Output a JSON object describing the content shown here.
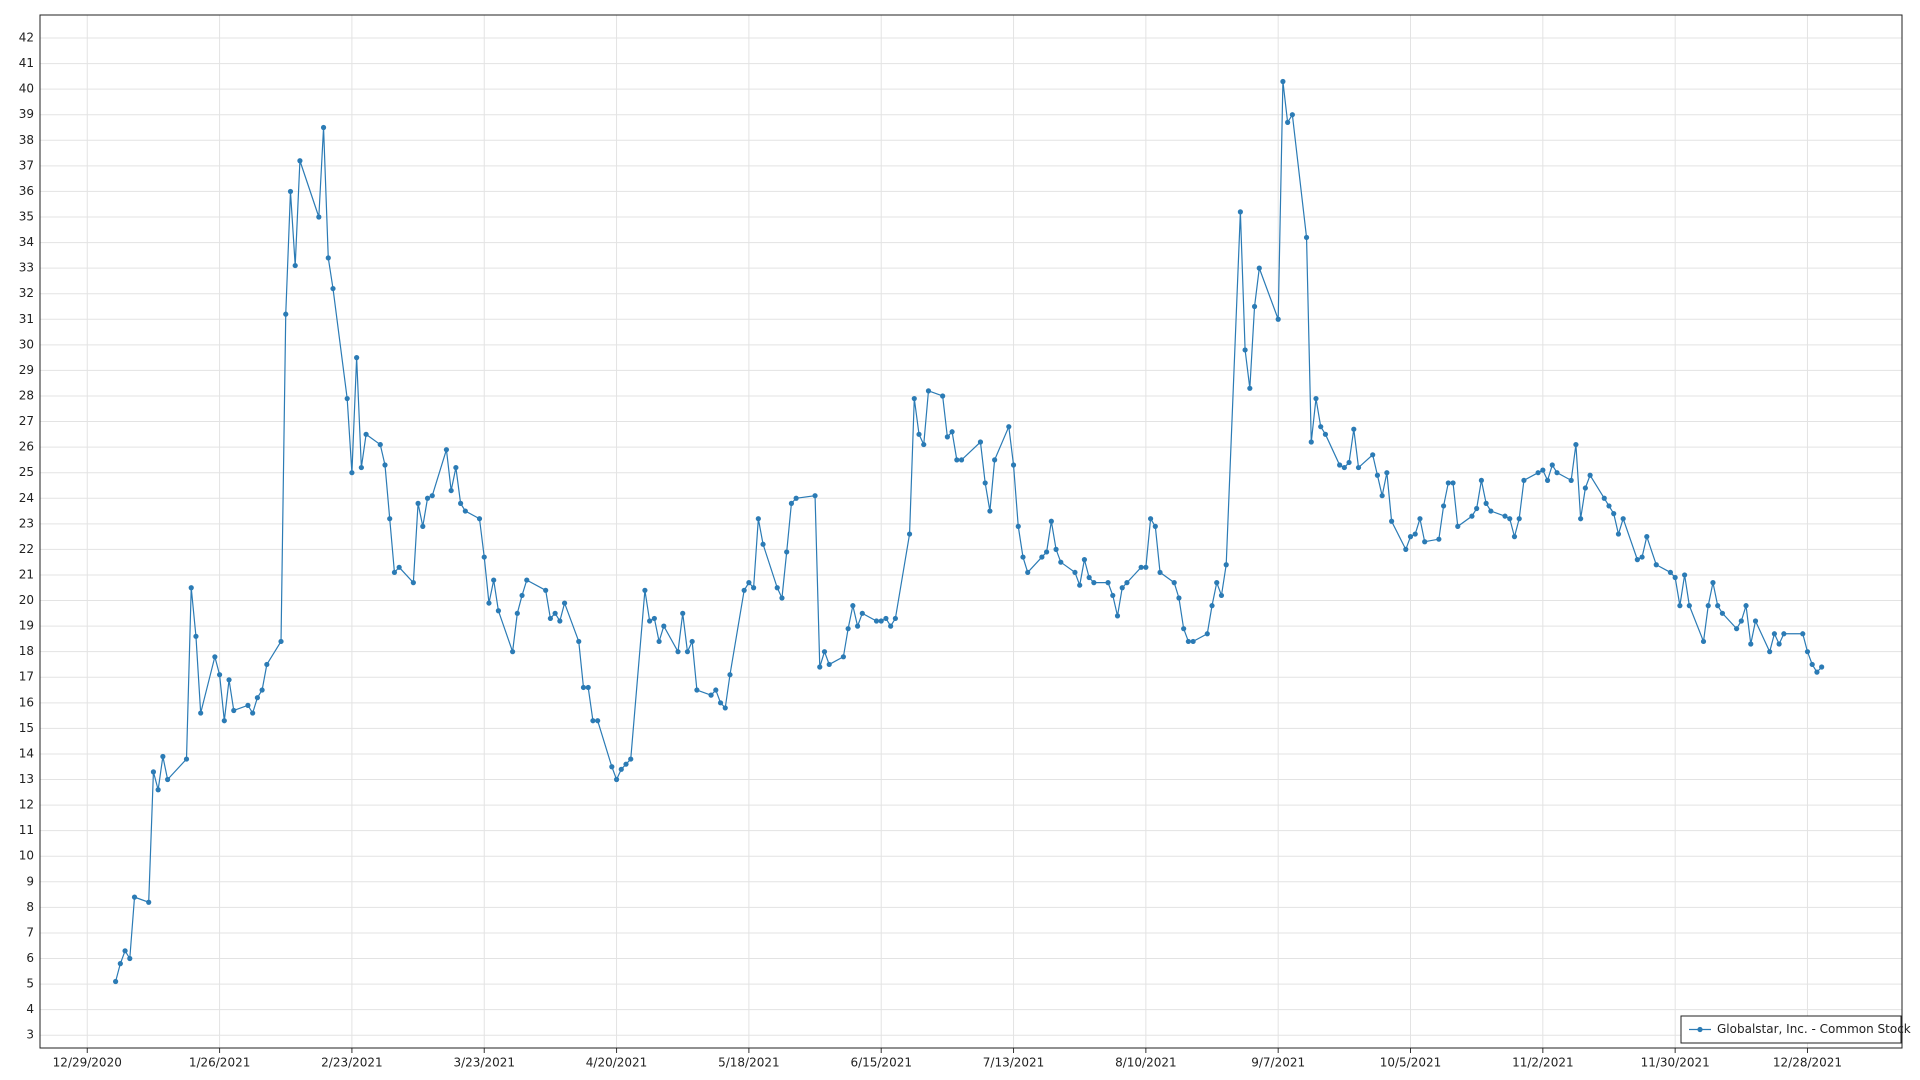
{
  "chart_data": {
    "type": "line",
    "x": [
      "1/4/2021",
      "1/5/2021",
      "1/6/2021",
      "1/7/2021",
      "1/8/2021",
      "1/11/2021",
      "1/12/2021",
      "1/13/2021",
      "1/14/2021",
      "1/15/2021",
      "1/19/2021",
      "1/20/2021",
      "1/21/2021",
      "1/22/2021",
      "1/25/2021",
      "1/26/2021",
      "1/27/2021",
      "1/28/2021",
      "1/29/2021",
      "2/1/2021",
      "2/2/2021",
      "2/3/2021",
      "2/4/2021",
      "2/5/2021",
      "2/8/2021",
      "2/9/2021",
      "2/10/2021",
      "2/11/2021",
      "2/12/2021",
      "2/16/2021",
      "2/17/2021",
      "2/18/2021",
      "2/19/2021",
      "2/22/2021",
      "2/23/2021",
      "2/24/2021",
      "2/25/2021",
      "2/26/2021",
      "3/1/2021",
      "3/2/2021",
      "3/3/2021",
      "3/4/2021",
      "3/5/2021",
      "3/8/2021",
      "3/9/2021",
      "3/10/2021",
      "3/11/2021",
      "3/12/2021",
      "3/15/2021",
      "3/16/2021",
      "3/17/2021",
      "3/18/2021",
      "3/19/2021",
      "3/22/2021",
      "3/23/2021",
      "3/24/2021",
      "3/25/2021",
      "3/26/2021",
      "3/29/2021",
      "3/30/2021",
      "3/31/2021",
      "4/1/2021",
      "4/5/2021",
      "4/6/2021",
      "4/7/2021",
      "4/8/2021",
      "4/9/2021",
      "4/12/2021",
      "4/13/2021",
      "4/14/2021",
      "4/15/2021",
      "4/16/2021",
      "4/19/2021",
      "4/20/2021",
      "4/21/2021",
      "4/22/2021",
      "4/23/2021",
      "4/26/2021",
      "4/27/2021",
      "4/28/2021",
      "4/29/2021",
      "4/30/2021",
      "5/3/2021",
      "5/4/2021",
      "5/5/2021",
      "5/6/2021",
      "5/7/2021",
      "5/10/2021",
      "5/11/2021",
      "5/12/2021",
      "5/13/2021",
      "5/14/2021",
      "5/17/2021",
      "5/18/2021",
      "5/19/2021",
      "5/20/2021",
      "5/21/2021",
      "5/24/2021",
      "5/25/2021",
      "5/26/2021",
      "5/27/2021",
      "5/28/2021",
      "6/1/2021",
      "6/2/2021",
      "6/3/2021",
      "6/4/2021",
      "6/7/2021",
      "6/8/2021",
      "6/9/2021",
      "6/10/2021",
      "6/11/2021",
      "6/14/2021",
      "6/15/2021",
      "6/16/2021",
      "6/17/2021",
      "6/18/2021",
      "6/21/2021",
      "6/22/2021",
      "6/23/2021",
      "6/24/2021",
      "6/25/2021",
      "6/28/2021",
      "6/29/2021",
      "6/30/2021",
      "7/1/2021",
      "7/2/2021",
      "7/6/2021",
      "7/7/2021",
      "7/8/2021",
      "7/9/2021",
      "7/12/2021",
      "7/13/2021",
      "7/14/2021",
      "7/15/2021",
      "7/16/2021",
      "7/19/2021",
      "7/20/2021",
      "7/21/2021",
      "7/22/2021",
      "7/23/2021",
      "7/26/2021",
      "7/27/2021",
      "7/28/2021",
      "7/29/2021",
      "7/30/2021",
      "8/2/2021",
      "8/3/2021",
      "8/4/2021",
      "8/5/2021",
      "8/6/2021",
      "8/9/2021",
      "8/10/2021",
      "8/11/2021",
      "8/12/2021",
      "8/13/2021",
      "8/16/2021",
      "8/17/2021",
      "8/18/2021",
      "8/19/2021",
      "8/20/2021",
      "8/23/2021",
      "8/24/2021",
      "8/25/2021",
      "8/26/2021",
      "8/27/2021",
      "8/30/2021",
      "8/31/2021",
      "9/1/2021",
      "9/2/2021",
      "9/3/2021",
      "9/7/2021",
      "9/8/2021",
      "9/9/2021",
      "9/10/2021",
      "9/13/2021",
      "9/14/2021",
      "9/15/2021",
      "9/16/2021",
      "9/17/2021",
      "9/20/2021",
      "9/21/2021",
      "9/22/2021",
      "9/23/2021",
      "9/24/2021",
      "9/27/2021",
      "9/28/2021",
      "9/29/2021",
      "9/30/2021",
      "10/1/2021",
      "10/4/2021",
      "10/5/2021",
      "10/6/2021",
      "10/7/2021",
      "10/8/2021",
      "10/11/2021",
      "10/12/2021",
      "10/13/2021",
      "10/14/2021",
      "10/15/2021",
      "10/18/2021",
      "10/19/2021",
      "10/20/2021",
      "10/21/2021",
      "10/22/2021",
      "10/25/2021",
      "10/26/2021",
      "10/27/2021",
      "10/28/2021",
      "10/29/2021",
      "11/1/2021",
      "11/2/2021",
      "11/3/2021",
      "11/4/2021",
      "11/5/2021",
      "11/8/2021",
      "11/9/2021",
      "11/10/2021",
      "11/11/2021",
      "11/12/2021",
      "11/15/2021",
      "11/16/2021",
      "11/17/2021",
      "11/18/2021",
      "11/19/2021",
      "11/22/2021",
      "11/23/2021",
      "11/24/2021",
      "11/26/2021",
      "11/29/2021",
      "11/30/2021",
      "12/1/2021",
      "12/2/2021",
      "12/3/2021",
      "12/6/2021",
      "12/7/2021",
      "12/8/2021",
      "12/9/2021",
      "12/10/2021",
      "12/13/2021",
      "12/14/2021",
      "12/15/2021",
      "12/16/2021",
      "12/17/2021",
      "12/20/2021",
      "12/21/2021",
      "12/22/2021",
      "12/23/2021",
      "12/27/2021",
      "12/28/2021",
      "12/29/2021",
      "12/30/2021",
      "12/31/2021"
    ],
    "series": [
      {
        "name": "Globalstar, Inc. - Common Stock",
        "color": "#2b7bb5",
        "values": [
          5.1,
          5.8,
          6.3,
          6.0,
          8.4,
          8.2,
          13.3,
          12.6,
          13.9,
          13.0,
          13.8,
          20.5,
          18.6,
          15.6,
          17.8,
          17.1,
          15.3,
          16.9,
          15.7,
          15.9,
          15.6,
          16.2,
          16.5,
          17.5,
          18.4,
          31.2,
          36.0,
          33.1,
          37.2,
          35.0,
          38.5,
          33.4,
          32.2,
          27.9,
          25.0,
          29.5,
          25.2,
          26.5,
          26.1,
          25.3,
          23.2,
          21.1,
          21.3,
          20.7,
          23.8,
          22.9,
          24.0,
          24.1,
          25.9,
          24.3,
          25.2,
          23.8,
          23.5,
          23.2,
          21.7,
          19.9,
          20.8,
          19.6,
          18.0,
          19.5,
          20.2,
          20.8,
          20.4,
          19.3,
          19.5,
          19.2,
          19.9,
          18.4,
          16.6,
          16.6,
          15.3,
          15.3,
          13.5,
          13.0,
          13.4,
          13.6,
          13.8,
          20.4,
          19.2,
          19.3,
          18.4,
          19.0,
          18.0,
          19.5,
          18.0,
          18.4,
          16.5,
          16.3,
          16.5,
          16.0,
          15.8,
          17.1,
          20.4,
          20.7,
          20.5,
          23.2,
          22.2,
          20.5,
          20.1,
          21.9,
          23.8,
          24.0,
          24.1,
          17.4,
          18.0,
          17.5,
          17.8,
          18.9,
          19.8,
          19.0,
          19.5,
          19.2,
          19.2,
          19.3,
          19.0,
          19.3,
          22.6,
          27.9,
          26.5,
          26.1,
          28.2,
          28.0,
          26.4,
          26.6,
          25.5,
          25.5,
          26.2,
          24.6,
          23.5,
          25.5,
          26.8,
          25.3,
          22.9,
          21.7,
          21.1,
          21.7,
          21.9,
          23.1,
          22.0,
          21.5,
          21.1,
          20.6,
          21.6,
          20.9,
          20.7,
          20.7,
          20.2,
          19.4,
          20.5,
          20.7,
          21.3,
          21.3,
          23.2,
          22.9,
          21.1,
          20.7,
          20.1,
          18.9,
          18.4,
          18.4,
          18.7,
          19.8,
          20.7,
          20.2,
          21.4,
          35.2,
          29.8,
          28.3,
          31.5,
          33.0,
          31.0,
          40.3,
          38.7,
          39.0,
          34.2,
          26.2,
          27.9,
          26.8,
          26.5,
          25.3,
          25.2,
          25.4,
          26.7,
          25.2,
          25.7,
          24.9,
          24.1,
          25.0,
          23.1,
          22.0,
          22.5,
          22.6,
          23.2,
          22.3,
          22.4,
          23.7,
          24.6,
          24.6,
          22.9,
          23.3,
          23.6,
          24.7,
          23.8,
          23.5,
          23.3,
          23.2,
          22.5,
          23.2,
          24.7,
          25.0,
          25.1,
          24.7,
          25.3,
          25.0,
          24.7,
          26.1,
          23.2,
          24.4,
          24.9,
          24.0,
          23.7,
          23.4,
          22.6,
          23.2,
          21.6,
          21.7,
          22.5,
          21.4,
          21.1,
          20.9,
          19.8,
          21.0,
          19.8,
          18.4,
          19.8,
          20.7,
          19.8,
          19.5,
          18.9,
          19.2,
          19.8,
          18.3,
          19.2,
          18.0,
          18.7,
          18.3,
          18.7,
          18.7,
          18.0,
          17.5,
          17.2,
          17.4
        ]
      }
    ],
    "xlim": [
      "12/19/2020",
      "1/17/2022"
    ],
    "xticks": [
      "12/29/2020",
      "1/26/2021",
      "2/23/2021",
      "3/23/2021",
      "4/20/2021",
      "5/18/2021",
      "6/15/2021",
      "7/13/2021",
      "8/10/2021",
      "9/7/2021",
      "10/5/2021",
      "11/2/2021",
      "11/30/2021",
      "12/28/2021"
    ],
    "ylim": [
      2.5,
      42.9
    ],
    "yticks": [
      3,
      4,
      5,
      6,
      7,
      8,
      9,
      10,
      11,
      12,
      13,
      14,
      15,
      16,
      17,
      18,
      19,
      20,
      21,
      22,
      23,
      24,
      25,
      26,
      27,
      28,
      29,
      30,
      31,
      32,
      33,
      34,
      35,
      36,
      37,
      38,
      39,
      40,
      41,
      42
    ],
    "grid": true,
    "legend": "bottom-right"
  }
}
